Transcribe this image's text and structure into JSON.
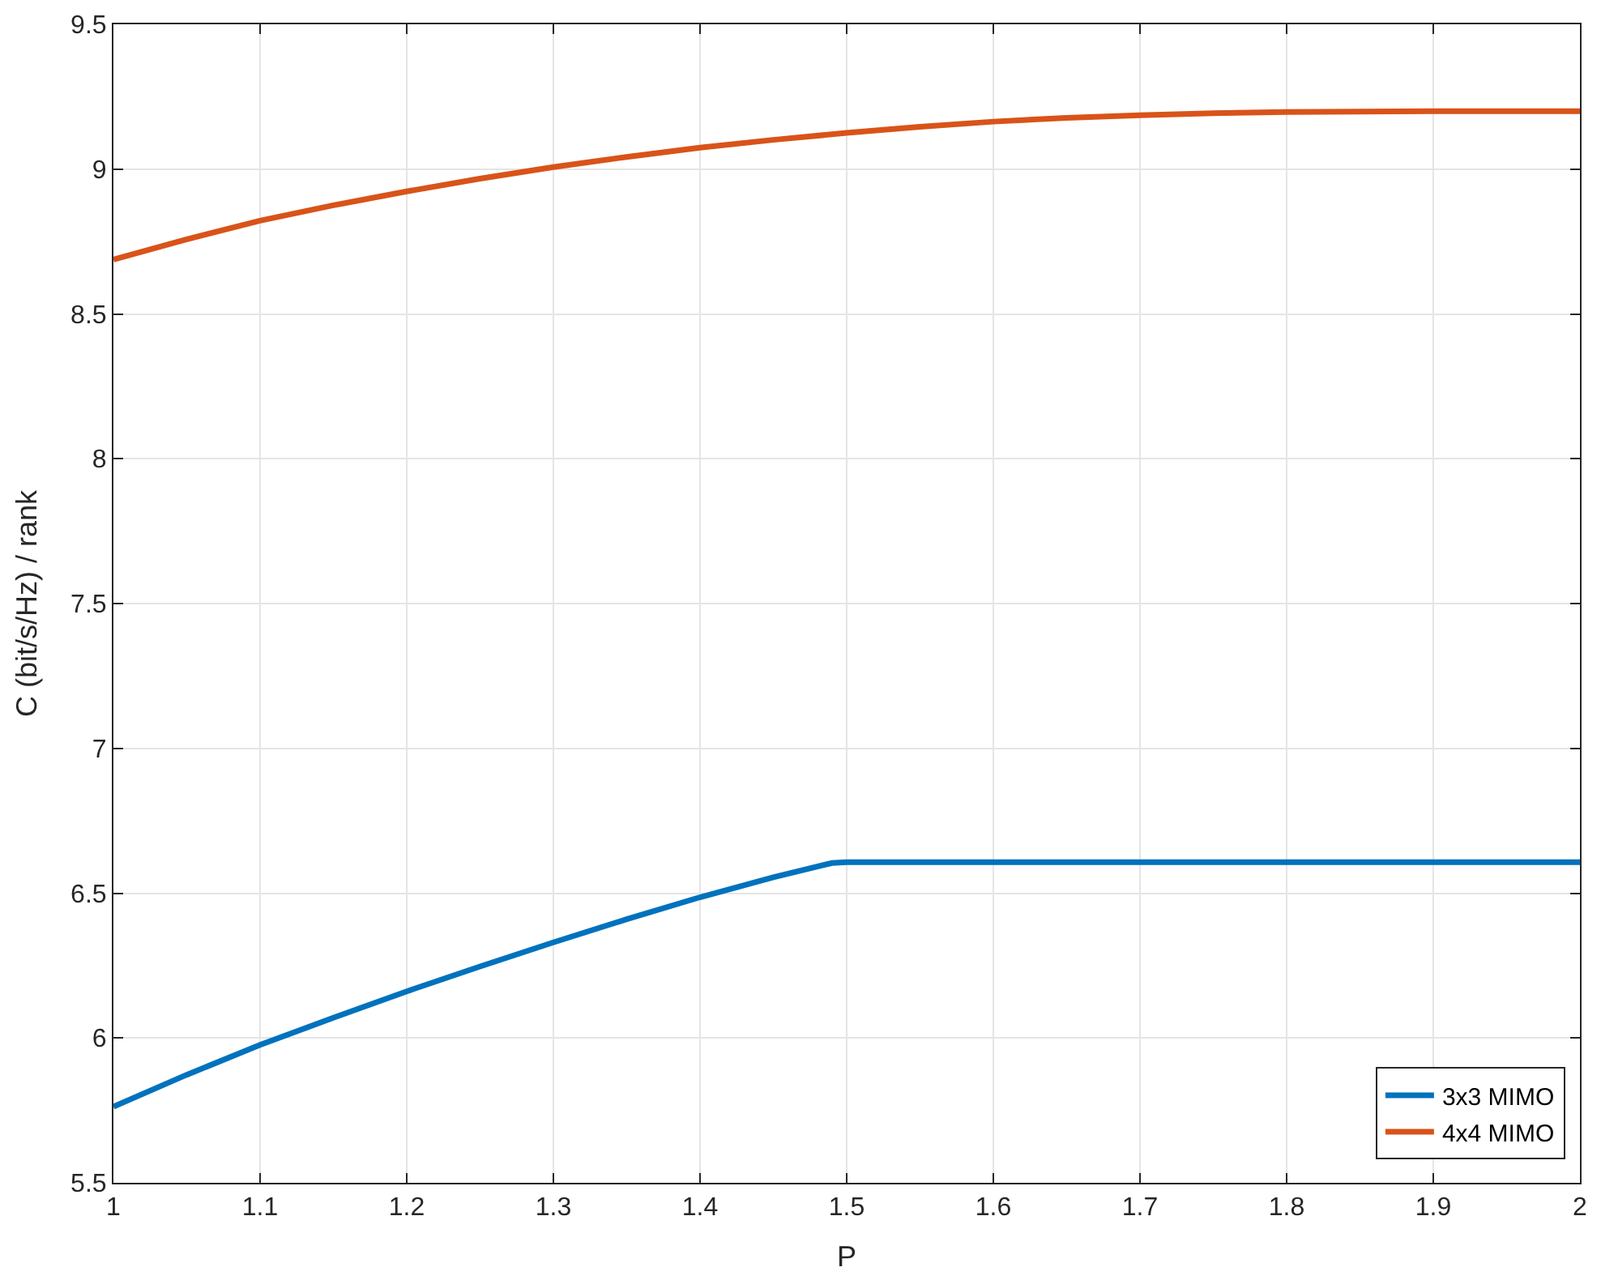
{
  "chart_data": {
    "type": "line",
    "xlabel": "P",
    "ylabel": "C (bit/s/Hz) / rank",
    "xlim": [
      1,
      2
    ],
    "xticks": [
      1,
      1.1,
      1.2,
      1.3,
      1.4,
      1.5,
      1.6,
      1.7,
      1.8,
      1.9,
      2
    ],
    "ylim": [
      5.5,
      9.5
    ],
    "yticks": [
      5.5,
      6,
      6.5,
      7,
      7.5,
      8,
      8.5,
      9,
      9.5
    ],
    "grid": true,
    "legend": "bottom right",
    "marker": "none",
    "line_style": "solid",
    "series": [
      {
        "name": "3x3 MIMO",
        "color": "#0072bd",
        "x": [
          1,
          1.05,
          1.1,
          1.15,
          1.2,
          1.25,
          1.3,
          1.35,
          1.4,
          1.45,
          1.49,
          1.5,
          1.6,
          1.7,
          1.8,
          1.9,
          2
        ],
        "values": [
          5.763,
          5.873,
          5.976,
          6.07,
          6.161,
          6.247,
          6.33,
          6.41,
          6.486,
          6.555,
          6.604,
          6.607,
          6.607,
          6.607,
          6.607,
          6.607,
          6.607
        ]
      },
      {
        "name": "4x4 MIMO",
        "color": "#d95319",
        "x": [
          1,
          1.05,
          1.1,
          1.15,
          1.2,
          1.25,
          1.3,
          1.35,
          1.4,
          1.45,
          1.5,
          1.55,
          1.6,
          1.65,
          1.7,
          1.75,
          1.8,
          1.9,
          2
        ],
        "values": [
          8.688,
          8.758,
          8.822,
          8.875,
          8.923,
          8.967,
          9.007,
          9.042,
          9.074,
          9.101,
          9.125,
          9.146,
          9.164,
          9.177,
          9.186,
          9.193,
          9.197,
          9.2,
          9.2
        ]
      }
    ]
  }
}
